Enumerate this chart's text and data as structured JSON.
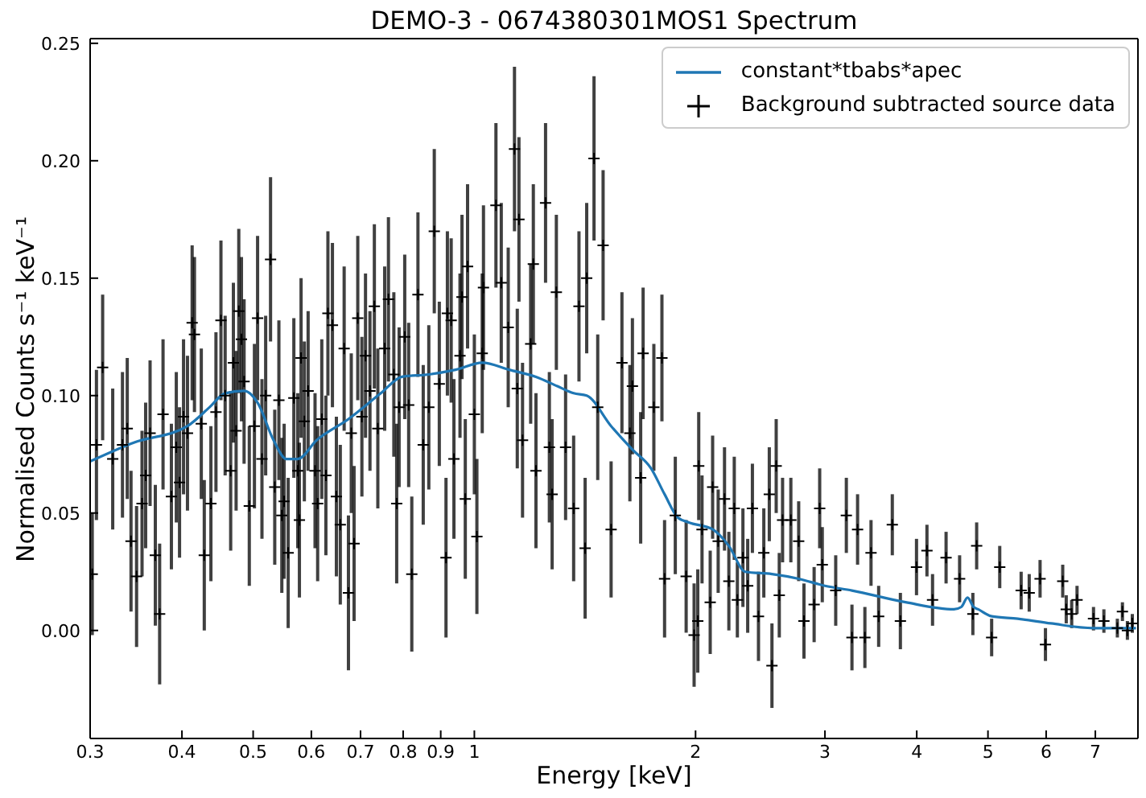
{
  "chart_data": {
    "type": "scatter",
    "title": "DEMO-3 - 0674380301MOS1 Spectrum",
    "xlabel": "Energy [keV]",
    "ylabel": "Normalised Counts s⁻¹ keV⁻¹",
    "log": "x",
    "xlim": [
      0.3,
      8.0
    ],
    "xticks": [
      0.3,
      0.4,
      0.5,
      0.6,
      0.7,
      0.8,
      0.9,
      1,
      2,
      3,
      4,
      5,
      6,
      7
    ],
    "ylim": [
      -0.046,
      0.252
    ],
    "yticks": [
      {
        "value": 0,
        "label": "0.00"
      },
      {
        "value": 0.05,
        "label": "0.05"
      },
      {
        "value": 0.1,
        "label": "0.10"
      },
      {
        "value": 0.15,
        "label": "0.15"
      },
      {
        "value": 0.2,
        "label": "0.20"
      },
      {
        "value": 0.25,
        "label": "0.25"
      }
    ],
    "legend": "top right",
    "series": [
      {
        "name": "constant*tbabs*apec",
        "type": "line",
        "color": "#1f77b4",
        "marker": "none",
        "x": [
          0.3,
          0.344,
          0.407,
          0.436,
          0.458,
          0.486,
          0.507,
          0.533,
          0.555,
          0.575,
          0.61,
          0.674,
          0.746,
          0.797,
          0.867,
          0.943,
          1.025,
          1.115,
          1.213,
          1.297,
          1.365,
          1.422,
          1.535,
          1.641,
          1.74,
          1.815,
          1.893,
          1.958,
          2.111,
          2.22,
          2.336,
          2.541,
          2.763,
          3.0,
          3.265,
          3.863,
          4.495,
          4.6,
          4.69,
          4.78,
          4.85,
          5.06,
          5.49,
          6.09,
          6.96,
          7.95
        ],
        "values": [
          0.072,
          0.08,
          0.087,
          0.095,
          0.101,
          0.102,
          0.097,
          0.081,
          0.073,
          0.073,
          0.081,
          0.09,
          0.101,
          0.108,
          0.109,
          0.111,
          0.114,
          0.111,
          0.108,
          0.104,
          0.101,
          0.1,
          0.087,
          0.077,
          0.069,
          0.058,
          0.048,
          0.046,
          0.043,
          0.036,
          0.025,
          0.024,
          0.022,
          0.019,
          0.017,
          0.012,
          0.009,
          0.01,
          0.014,
          0.01,
          0.009,
          0.006,
          0.005,
          0.003,
          0.001,
          0.001
        ]
      },
      {
        "name": "Background subtracted source data",
        "color": "#000000",
        "marker": "cross",
        "x": [
          0.302,
          0.306,
          0.312,
          0.322,
          0.332,
          0.337,
          0.341,
          0.347,
          0.353,
          0.357,
          0.362,
          0.368,
          0.373,
          0.377,
          0.387,
          0.393,
          0.397,
          0.402,
          0.407,
          0.413,
          0.416,
          0.425,
          0.429,
          0.438,
          0.445,
          0.452,
          0.458,
          0.466,
          0.47,
          0.474,
          0.478,
          0.482,
          0.486,
          0.494,
          0.502,
          0.507,
          0.514,
          0.52,
          0.528,
          0.535,
          0.542,
          0.547,
          0.551,
          0.558,
          0.568,
          0.575,
          0.578,
          0.581,
          0.587,
          0.594,
          0.607,
          0.612,
          0.62,
          0.628,
          0.632,
          0.641,
          0.649,
          0.657,
          0.665,
          0.674,
          0.68,
          0.686,
          0.694,
          0.703,
          0.711,
          0.721,
          0.731,
          0.739,
          0.755,
          0.764,
          0.777,
          0.784,
          0.79,
          0.804,
          0.814,
          0.822,
          0.838,
          0.852,
          0.867,
          0.882,
          0.896,
          0.915,
          0.919,
          0.93,
          0.938,
          0.956,
          0.962,
          0.972,
          0.979,
          1.0,
          1.008,
          1.025,
          1.029,
          1.07,
          1.088,
          1.112,
          1.134,
          1.144,
          1.15,
          1.163,
          1.193,
          1.203,
          1.213,
          1.25,
          1.265,
          1.276,
          1.293,
          1.331,
          1.365,
          1.388,
          1.415,
          1.422,
          1.455,
          1.472,
          1.497,
          1.535,
          1.588,
          1.628,
          1.641,
          1.684,
          1.697,
          1.755,
          1.8,
          1.815,
          1.877,
          1.942,
          1.991,
          2.014,
          2.02,
          2.041,
          2.094,
          2.11,
          2.147,
          2.19,
          2.22,
          2.258,
          2.28,
          2.32,
          2.355,
          2.39,
          2.436,
          2.477,
          2.52,
          2.541,
          2.575,
          2.6,
          2.627,
          2.696,
          2.763,
          2.809,
          2.9,
          2.951,
          2.975,
          3.103,
          3.208,
          3.265,
          3.323,
          3.4,
          3.466,
          3.55,
          3.705,
          3.8,
          3.997,
          4.13,
          4.203,
          4.385,
          4.575,
          4.769,
          4.826,
          5.058,
          5.188,
          5.548,
          5.69,
          5.887,
          5.987,
          6.32,
          6.39,
          6.5,
          6.61,
          6.96,
          7.19,
          7.5,
          7.62,
          7.74,
          7.86
        ],
        "values": [
          0.024,
          0.079,
          0.112,
          0.073,
          0.079,
          0.086,
          0.038,
          0.023,
          0.054,
          0.066,
          0.084,
          0.032,
          0.007,
          0.092,
          0.057,
          0.078,
          0.063,
          0.091,
          0.084,
          0.131,
          0.126,
          0.088,
          0.032,
          0.054,
          0.093,
          0.132,
          0.1,
          0.068,
          0.114,
          0.085,
          0.136,
          0.124,
          0.106,
          0.053,
          0.087,
          0.133,
          0.073,
          0.1,
          0.158,
          0.061,
          0.098,
          0.049,
          0.055,
          0.033,
          0.099,
          0.068,
          0.047,
          0.116,
          0.089,
          0.102,
          0.068,
          0.054,
          0.09,
          0.066,
          0.135,
          0.13,
          0.057,
          0.045,
          0.12,
          0.016,
          0.084,
          0.037,
          0.133,
          0.091,
          0.117,
          0.102,
          0.138,
          0.086,
          0.12,
          0.141,
          0.109,
          0.054,
          0.095,
          0.125,
          0.096,
          0.024,
          0.143,
          0.079,
          0.095,
          0.17,
          0.105,
          0.031,
          0.135,
          0.132,
          0.073,
          0.117,
          0.142,
          0.056,
          0.155,
          0.092,
          0.04,
          0.118,
          0.146,
          0.181,
          0.148,
          0.129,
          0.205,
          0.103,
          0.175,
          0.081,
          0.122,
          0.156,
          0.068,
          0.182,
          0.078,
          0.058,
          0.144,
          0.078,
          0.052,
          0.138,
          0.035,
          0.15,
          0.201,
          0.095,
          0.164,
          0.043,
          0.114,
          0.084,
          0.104,
          0.065,
          0.118,
          0.095,
          0.116,
          0.022,
          0.049,
          0.023,
          -0.002,
          0.004,
          0.07,
          0.043,
          0.012,
          0.061,
          0.038,
          0.056,
          0.021,
          0.052,
          0.013,
          0.031,
          0.019,
          0.052,
          0.006,
          0.033,
          0.058,
          -0.015,
          0.07,
          0.015,
          0.047,
          0.047,
          0.038,
          0.004,
          0.011,
          0.052,
          0.028,
          0.017,
          0.049,
          -0.003,
          0.043,
          -0.003,
          0.033,
          0.006,
          0.045,
          0.004,
          0.027,
          0.034,
          0.013,
          0.031,
          0.022,
          0.007,
          0.036,
          -0.003,
          0.027,
          0.017,
          0.016,
          0.022,
          -0.006,
          0.021,
          0.009,
          0.007,
          0.013,
          0.005,
          0.004,
          0.001,
          0.008,
          0.0,
          0.003
        ],
        "errors": [
          0.026,
          0.032,
          0.031,
          0.03,
          0.031,
          0.03,
          0.03,
          0.03,
          0.031,
          0.031,
          0.031,
          0.03,
          0.03,
          0.032,
          0.031,
          0.032,
          0.032,
          0.033,
          0.033,
          0.033,
          0.033,
          0.032,
          0.032,
          0.033,
          0.034,
          0.034,
          0.034,
          0.034,
          0.034,
          0.034,
          0.035,
          0.035,
          0.035,
          0.034,
          0.035,
          0.035,
          0.034,
          0.034,
          0.035,
          0.033,
          0.034,
          0.033,
          0.033,
          0.032,
          0.034,
          0.033,
          0.033,
          0.034,
          0.034,
          0.034,
          0.033,
          0.033,
          0.034,
          0.034,
          0.035,
          0.035,
          0.034,
          0.034,
          0.035,
          0.033,
          0.034,
          0.033,
          0.035,
          0.034,
          0.035,
          0.034,
          0.035,
          0.034,
          0.035,
          0.035,
          0.035,
          0.034,
          0.034,
          0.035,
          0.035,
          0.033,
          0.035,
          0.034,
          0.035,
          0.035,
          0.035,
          0.034,
          0.035,
          0.035,
          0.034,
          0.035,
          0.035,
          0.034,
          0.035,
          0.034,
          0.033,
          0.034,
          0.035,
          0.035,
          0.034,
          0.034,
          0.035,
          0.034,
          0.035,
          0.033,
          0.034,
          0.034,
          0.033,
          0.034,
          0.032,
          0.032,
          0.033,
          0.031,
          0.031,
          0.032,
          0.03,
          0.032,
          0.035,
          0.031,
          0.032,
          0.029,
          0.03,
          0.029,
          0.029,
          0.028,
          0.028,
          0.027,
          0.027,
          0.025,
          0.025,
          0.024,
          0.022,
          0.022,
          0.023,
          0.023,
          0.022,
          0.022,
          0.022,
          0.022,
          0.021,
          0.022,
          0.016,
          0.021,
          0.02,
          0.019,
          0.019,
          0.019,
          0.02,
          0.018,
          0.02,
          0.018,
          0.018,
          0.018,
          0.017,
          0.016,
          0.016,
          0.017,
          0.016,
          0.015,
          0.016,
          0.014,
          0.015,
          0.013,
          0.014,
          0.013,
          0.013,
          0.012,
          0.012,
          0.011,
          0.011,
          0.011,
          0.01,
          0.009,
          0.01,
          0.008,
          0.009,
          0.008,
          0.008,
          0.008,
          0.007,
          0.007,
          0.006,
          0.006,
          0.006,
          0.005,
          0.005,
          0.004,
          0.004,
          0.004,
          0.004
        ]
      }
    ]
  }
}
